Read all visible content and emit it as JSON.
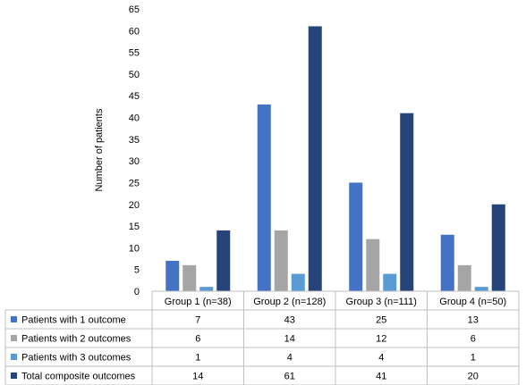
{
  "chart_data": {
    "type": "bar",
    "title": "",
    "xlabel": "",
    "ylabel": "Number of patients",
    "ylim": [
      0,
      65
    ],
    "ytick_step": 5,
    "grid": false,
    "legend": "table-left",
    "categories": [
      "Group 1 (n=38)",
      "Group 2 (n=128)",
      "Group 3 (n=111)",
      "Group 4 (n=50)"
    ],
    "series": [
      {
        "name": "Patients with 1 outcome",
        "color": "#4472C4",
        "values": [
          7,
          43,
          25,
          13
        ]
      },
      {
        "name": "Patients with 2 outcomes",
        "color": "#A5A5A5",
        "values": [
          6,
          14,
          12,
          6
        ]
      },
      {
        "name": "Patients with 3 outcomes",
        "color": "#5B9BD5",
        "values": [
          1,
          4,
          4,
          1
        ]
      },
      {
        "name": "Total composite outcomes",
        "color": "#264478",
        "values": [
          14,
          61,
          41,
          20
        ]
      }
    ]
  }
}
